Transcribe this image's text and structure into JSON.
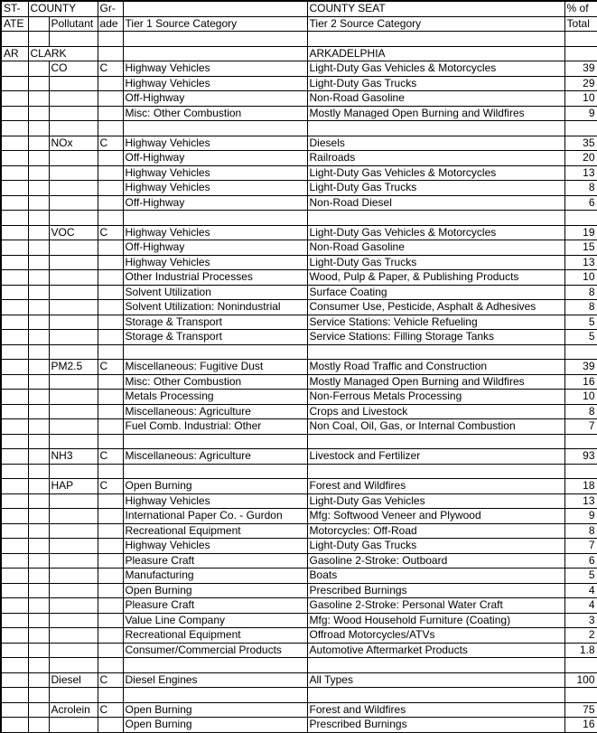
{
  "header": {
    "row1": {
      "state": "ST-",
      "county": "COUNTY",
      "grade": "Gr-",
      "tier1": "",
      "tier2": "COUNTY SEAT",
      "pct": "% of"
    },
    "row2": {
      "state": "ATE",
      "pollutant": "Pollutant",
      "grade": "ade",
      "tier1": "Tier 1 Source Category",
      "tier2": "Tier 2 Source Category",
      "pct": "Total"
    }
  },
  "location": {
    "state": "AR",
    "county": "CLARK",
    "county_seat": "ARKADELPHIA"
  },
  "groups": [
    {
      "pollutant": "CO",
      "grade": "C",
      "rows": [
        [
          "Highway Vehicles",
          "Light-Duty Gas Vehicles & Motorcycles",
          "39"
        ],
        [
          "Highway Vehicles",
          "Light-Duty Gas Trucks",
          "29"
        ],
        [
          "Off-Highway",
          "Non-Road Gasoline",
          "10"
        ],
        [
          "Misc: Other Combustion",
          "Mostly Managed Open Burning and Wildfires",
          "9"
        ]
      ]
    },
    {
      "pollutant": "NOx",
      "grade": "C",
      "rows": [
        [
          "Highway Vehicles",
          "Diesels",
          "35"
        ],
        [
          "Off-Highway",
          "Railroads",
          "20"
        ],
        [
          "Highway Vehicles",
          "Light-Duty Gas Vehicles & Motorcycles",
          "13"
        ],
        [
          "Highway Vehicles",
          "Light-Duty Gas Trucks",
          "8"
        ],
        [
          "Off-Highway",
          "Non-Road Diesel",
          "6"
        ]
      ]
    },
    {
      "pollutant": "VOC",
      "grade": "C",
      "rows": [
        [
          "Highway Vehicles",
          "Light-Duty Gas Vehicles & Motorcycles",
          "19"
        ],
        [
          "Off-Highway",
          "Non-Road Gasoline",
          "15"
        ],
        [
          "Highway Vehicles",
          "Light-Duty Gas Trucks",
          "13"
        ],
        [
          "Other Industrial Processes",
          "Wood, Pulp & Paper, & Publishing Products",
          "10"
        ],
        [
          "Solvent Utilization",
          "Surface Coating",
          "8"
        ],
        [
          "Solvent Utilization: Nonindustrial",
          "Consumer Use, Pesticide, Asphalt & Adhesives",
          "8"
        ],
        [
          "Storage & Transport",
          "Service Stations: Vehicle Refueling",
          "5"
        ],
        [
          "Storage & Transport",
          "Service Stations: Filling Storage Tanks",
          "5"
        ]
      ]
    },
    {
      "pollutant": "PM2.5",
      "grade": "C",
      "rows": [
        [
          "Miscellaneous: Fugitive Dust",
          "Mostly Road Traffic and Construction",
          "39"
        ],
        [
          "Misc: Other Combustion",
          "Mostly Managed Open Burning and Wildfires",
          "16"
        ],
        [
          "Metals Processing",
          "Non-Ferrous Metals Processing",
          "10"
        ],
        [
          "Miscellaneous: Agriculture",
          "Crops and Livestock",
          "8"
        ],
        [
          "Fuel Comb. Industrial: Other",
          "Non Coal, Oil, Gas, or Internal Combustion",
          "7"
        ]
      ]
    },
    {
      "pollutant": "NH3",
      "grade": "C",
      "rows": [
        [
          "Miscellaneous: Agriculture",
          "Livestock and Fertilizer",
          "93"
        ]
      ]
    },
    {
      "pollutant": "HAP",
      "grade": "C",
      "rows": [
        [
          "Open Burning",
          "Forest and Wildfires",
          "18"
        ],
        [
          "Highway Vehicles",
          "Light-Duty Gas Vehicles",
          "13"
        ],
        [
          "International Paper Co. - Gurdon",
          "Mfg: Softwood Veneer and Plywood",
          "9"
        ],
        [
          "Recreational Equipment",
          "Motorcycles: Off-Road",
          "8"
        ],
        [
          "Highway Vehicles",
          "Light-Duty Gas Trucks",
          "7"
        ],
        [
          "Pleasure Craft",
          "Gasoline 2-Stroke: Outboard",
          "6"
        ],
        [
          "Manufacturing",
          "Boats",
          "5"
        ],
        [
          "Open Burning",
          "Prescribed Burnings",
          "4"
        ],
        [
          "Pleasure Craft",
          "Gasoline 2-Stroke: Personal Water Craft",
          "4"
        ],
        [
          "Value Line Company",
          "Mfg: Wood Household Furniture (Coating)",
          "3"
        ],
        [
          "Recreational Equipment",
          "Offroad Motorcycles/ATVs",
          "2"
        ],
        [
          "Consumer/Commercial Products",
          "Automotive Aftermarket Products",
          "1.8"
        ]
      ]
    },
    {
      "pollutant": "Diesel",
      "grade": "C",
      "rows": [
        [
          "Diesel Engines",
          "All Types",
          "100"
        ]
      ]
    },
    {
      "pollutant": "Acrolein",
      "grade": "C",
      "rows": [
        [
          "Open Burning",
          "Forest and Wildfires",
          "75"
        ],
        [
          "Open Burning",
          "Prescribed Burnings",
          "16"
        ]
      ]
    }
  ]
}
